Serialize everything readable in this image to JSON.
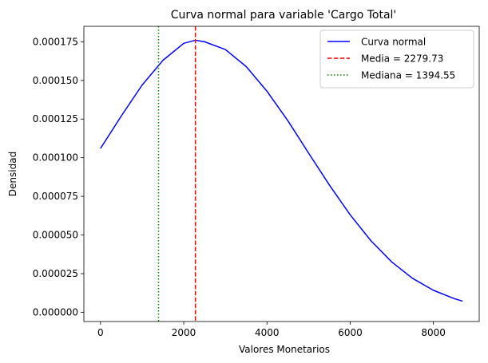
{
  "chart_data": {
    "type": "line",
    "title": "Curva normal para variable 'Cargo Total'",
    "xlabel": "Valores Monetarios",
    "ylabel": "Densidad",
    "xlim": [
      -400,
      9100
    ],
    "ylim": [
      -6e-06,
      0.000185
    ],
    "x_ticks": [
      0,
      2000,
      4000,
      6000,
      8000
    ],
    "x_tick_labels": [
      "0",
      "2000",
      "4000",
      "6000",
      "8000"
    ],
    "y_ticks": [
      0,
      2.5e-05,
      5e-05,
      7.5e-05,
      0.0001,
      0.000125,
      0.00015,
      0.000175
    ],
    "y_tick_labels": [
      "0.000000",
      "0.000025",
      "0.000050",
      "0.000075",
      "0.000100",
      "0.000125",
      "0.000150",
      "0.000175"
    ],
    "grid": false,
    "legend_position": "top-right",
    "series": [
      {
        "name": "Curva normal",
        "color": "#0000ff",
        "style": "solid",
        "x": [
          0,
          500,
          1000,
          1500,
          2000,
          2280,
          2500,
          3000,
          3500,
          4000,
          4500,
          5000,
          5500,
          6000,
          6500,
          7000,
          7500,
          8000,
          8500,
          8700
        ],
        "y": [
          0.000106,
          0.000127,
          0.000147,
          0.000163,
          0.000174,
          0.000176,
          0.000175,
          0.00017,
          0.000159,
          0.000143,
          0.000124,
          0.000103,
          8.23e-05,
          6.3e-05,
          4.62e-05,
          3.25e-05,
          2.19e-05,
          1.42e-05,
          8.8e-06,
          7.2e-06
        ]
      }
    ],
    "reference_lines": [
      {
        "name": "Media = 2279.73",
        "x": 2279.73,
        "color": "#ff0000",
        "style": "dashed"
      },
      {
        "name": "Mediana = 1394.55",
        "x": 1394.55,
        "color": "#008000",
        "style": "dotted"
      }
    ]
  }
}
